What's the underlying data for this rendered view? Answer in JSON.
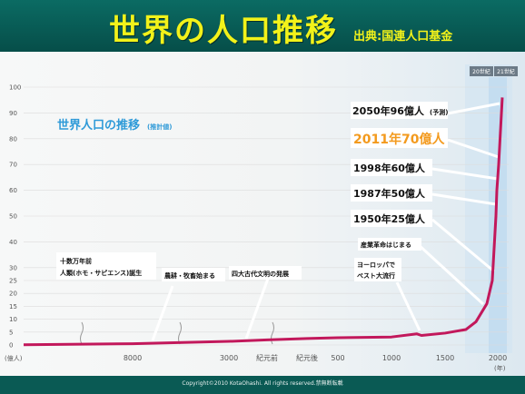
{
  "header": {
    "title": "世界の人口推移",
    "source": "出典:国連人口基金"
  },
  "footer": {
    "copyright": "Copyright©2010 KotaOhashi. All rights reserved.禁無断転載"
  },
  "chart_data": {
    "type": "line",
    "title": "世界人口の推移",
    "title_note": "(推計値)",
    "ylabel": "(億人)",
    "xlabel": "(年)",
    "ylim": [
      0,
      100
    ],
    "y_ticks": [
      100,
      90,
      80,
      70,
      60,
      50,
      40,
      30,
      25,
      20,
      15,
      10,
      5,
      0
    ],
    "x_ticks": [
      "8000",
      "3000",
      "紀元前",
      "紀元後",
      "500",
      "1000",
      "1500",
      "2000"
    ],
    "era_labels": [
      "20世紀",
      "21世紀"
    ],
    "series": [
      {
        "color": "#c2185b",
        "points": [
          {
            "x": "十数万年前",
            "y": 0.1
          },
          {
            "x": "8000",
            "y": 0.5
          },
          {
            "x": "3000",
            "y": 1.4
          },
          {
            "x": "紀元前",
            "y": 2.0
          },
          {
            "x": "紀元後",
            "y": 2.5
          },
          {
            "x": "500",
            "y": 2.8
          },
          {
            "x": "1000",
            "y": 3.1
          },
          {
            "x": "1300",
            "y": 4.3
          },
          {
            "x": "1350",
            "y": 3.7
          },
          {
            "x": "1500",
            "y": 4.6
          },
          {
            "x": "1700",
            "y": 6.0
          },
          {
            "x": "1800",
            "y": 9.0
          },
          {
            "x": "1900",
            "y": 16.0
          },
          {
            "x": "1950",
            "y": 25
          },
          {
            "x": "1987",
            "y": 50
          },
          {
            "x": "1998",
            "y": 60
          },
          {
            "x": "2011",
            "y": 70
          },
          {
            "x": "2050",
            "y": 96
          }
        ]
      }
    ],
    "annotations": [
      {
        "text": "2050年96億人",
        "note": "(予測)"
      },
      {
        "text": "2011年70億人",
        "highlight": true
      },
      {
        "text": "1998年60億人"
      },
      {
        "text": "1987年50億人"
      },
      {
        "text": "1950年25億人"
      },
      {
        "text": "産業革命はじまる"
      },
      {
        "text": "ヨーロッパで"
      },
      {
        "text": "ペスト大流行"
      },
      {
        "text": "十数万年前"
      },
      {
        "text": "人類(ホモ・サピエンス)誕生"
      },
      {
        "text": "農耕・牧畜始まる"
      },
      {
        "text": "四大古代文明の発展"
      }
    ]
  }
}
